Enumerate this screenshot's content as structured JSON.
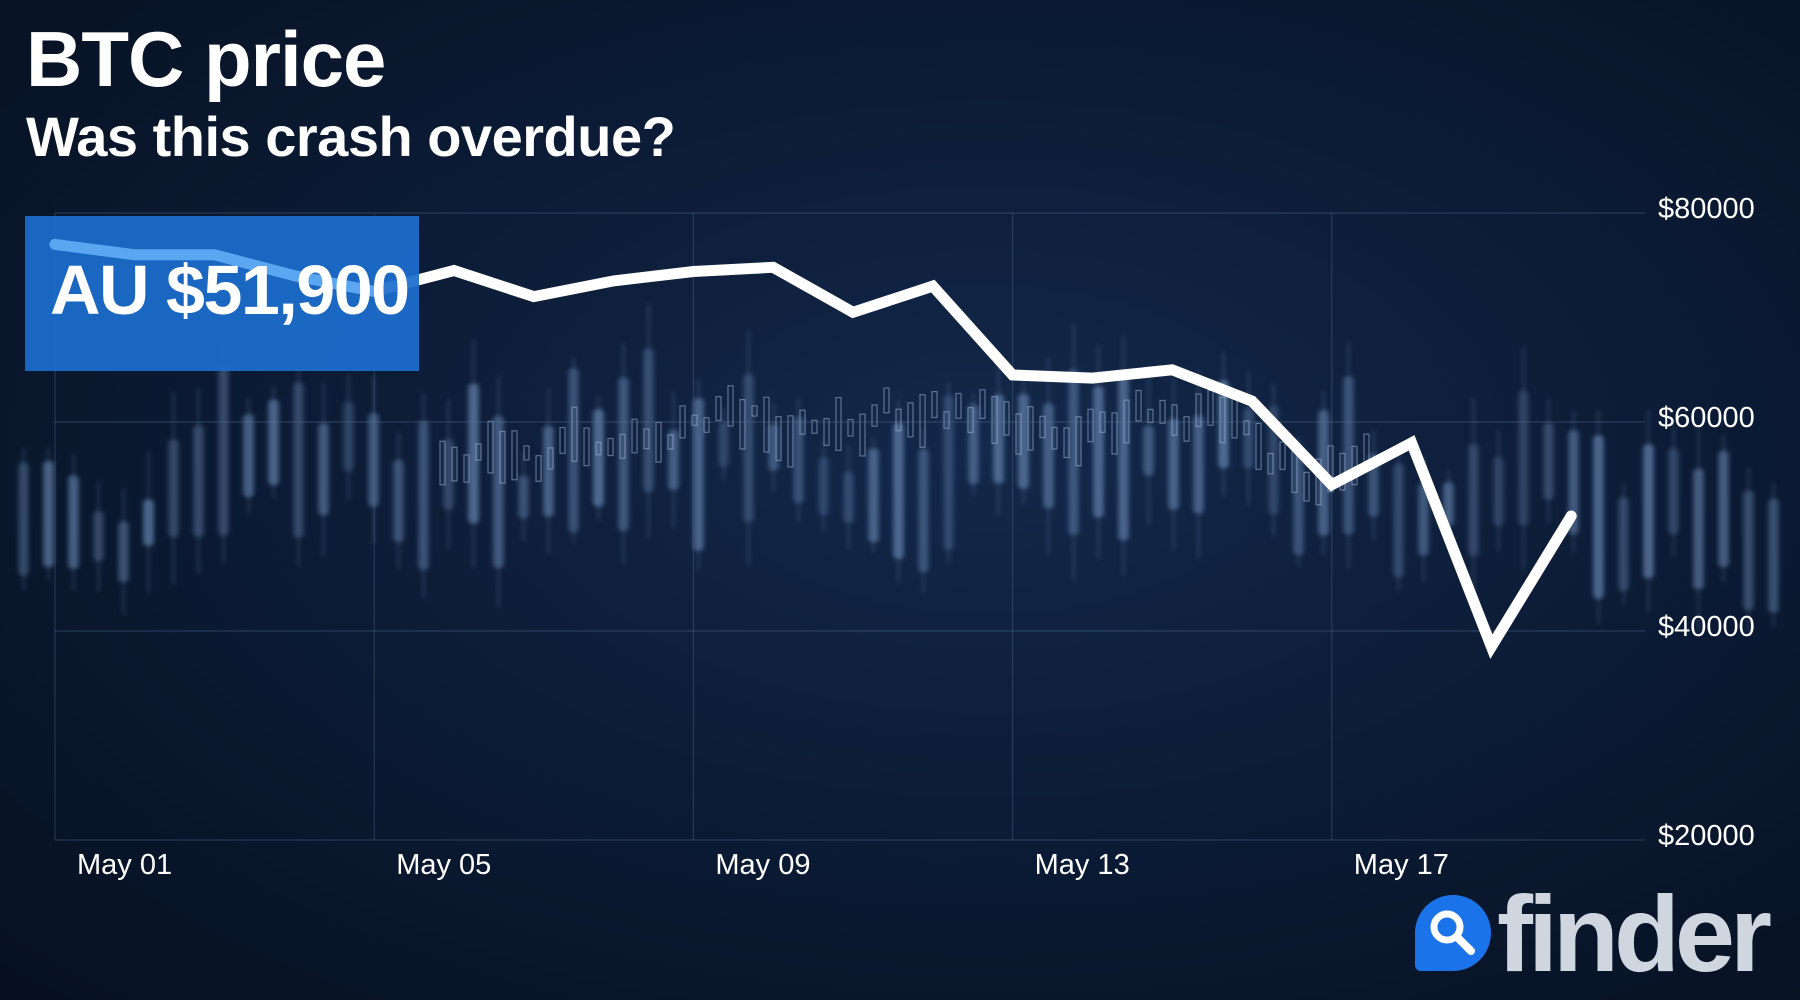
{
  "header": {
    "title": "BTC price",
    "subtitle": "Was this crash overdue?"
  },
  "price_badge": {
    "text": "AU $51,900",
    "color": "#1c6ecd"
  },
  "brand": {
    "name": "finder",
    "icon": "magnifier-icon",
    "color": "#1a73e8"
  },
  "chart_data": {
    "type": "line",
    "title": "BTC price",
    "subtitle": "Was this crash overdue?",
    "xlabel": "",
    "ylabel": "",
    "x_tick_labels": [
      "May 01",
      "May 05",
      "May 09",
      "May 13",
      "May 17"
    ],
    "y_tick_labels": [
      "$80000",
      "$60000",
      "$40000",
      "$20000"
    ],
    "y_ticks": [
      80000,
      60000,
      40000,
      20000
    ],
    "ylim": [
      20000,
      80000
    ],
    "xlim": [
      1,
      20
    ],
    "grid": true,
    "line_color": "#ffffff",
    "series": [
      {
        "x": [
          1,
          2,
          3,
          4,
          5,
          6,
          7,
          8,
          9,
          10,
          11,
          12,
          13,
          14,
          15,
          16,
          17,
          18,
          19,
          20
        ],
        "values": [
          77000,
          76000,
          76000,
          74000,
          72500,
          74500,
          72000,
          73500,
          74400,
          74800,
          70500,
          73000,
          64500,
          64200,
          65000,
          62000,
          54000,
          58000,
          38500,
          51000
        ]
      }
    ]
  }
}
